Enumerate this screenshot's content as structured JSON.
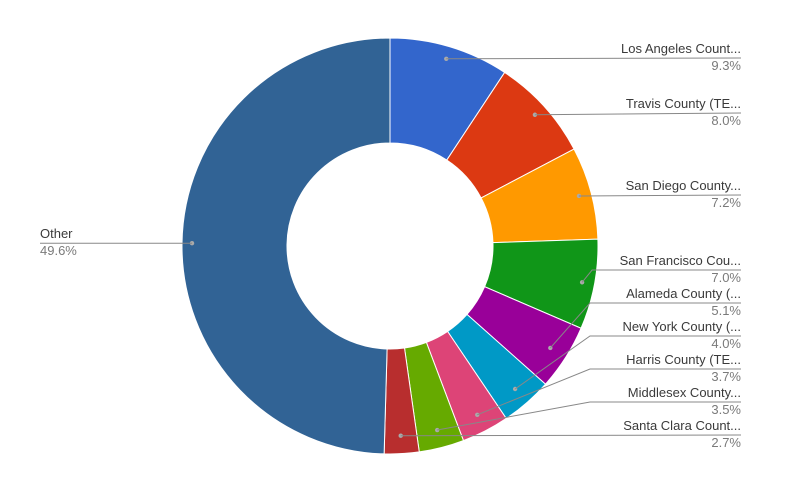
{
  "chart_data": {
    "type": "pie",
    "donut": true,
    "title": "",
    "legend": "none",
    "slices": [
      {
        "label": "Los Angeles Count...",
        "value": 9.3,
        "value_label": "9.3%",
        "color": "#3366cc"
      },
      {
        "label": "Travis County (TE...",
        "value": 8.0,
        "value_label": "8.0%",
        "color": "#dc3912"
      },
      {
        "label": "San Diego County...",
        "value": 7.2,
        "value_label": "7.2%",
        "color": "#ff9900"
      },
      {
        "label": "San Francisco Cou...",
        "value": 7.0,
        "value_label": "7.0%",
        "color": "#109618"
      },
      {
        "label": "Alameda County (...",
        "value": 5.1,
        "value_label": "5.1%",
        "color": "#990099"
      },
      {
        "label": "New York County (...",
        "value": 4.0,
        "value_label": "4.0%",
        "color": "#0099c6"
      },
      {
        "label": "Harris County (TE...",
        "value": 3.7,
        "value_label": "3.7%",
        "color": "#dd4477"
      },
      {
        "label": "Middlesex County...",
        "value": 3.5,
        "value_label": "3.5%",
        "color": "#66aa00"
      },
      {
        "label": "Santa Clara Count...",
        "value": 2.7,
        "value_label": "2.7%",
        "color": "#b82e2e"
      },
      {
        "label": "Other",
        "value": 49.6,
        "value_label": "49.6%",
        "color": "#316395"
      }
    ]
  }
}
